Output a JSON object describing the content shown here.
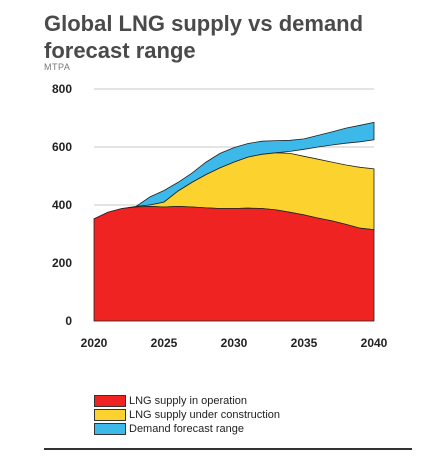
{
  "title": "Global LNG supply vs demand forecast range",
  "unit_label": "MTPA",
  "colors": {
    "operation": "#f02323",
    "construction": "#fcd22f",
    "demand": "#3cb9e8",
    "grid": "#c8c8c8"
  },
  "chart_data": {
    "type": "area",
    "title": "Global LNG supply vs demand forecast range",
    "ylabel": "MTPA",
    "xlim": [
      2020,
      2040
    ],
    "ylim": [
      0,
      800
    ],
    "xticks": [
      "2020",
      "2025",
      "2030",
      "2035",
      "2040"
    ],
    "yticks": [
      "0",
      "200",
      "400",
      "600",
      "800"
    ],
    "grid": true,
    "legend_position": "bottom",
    "series": [
      {
        "name": "LNG supply in operation",
        "points": [
          [
            2020,
            352
          ],
          [
            2021,
            375
          ],
          [
            2022,
            388
          ],
          [
            2023,
            393
          ],
          [
            2024,
            395
          ],
          [
            2025,
            393
          ],
          [
            2026,
            395
          ],
          [
            2027,
            393
          ],
          [
            2028,
            390
          ],
          [
            2029,
            388
          ],
          [
            2030,
            388
          ],
          [
            2031,
            389
          ],
          [
            2032,
            388
          ],
          [
            2033,
            383
          ],
          [
            2034,
            375
          ],
          [
            2035,
            366
          ],
          [
            2036,
            355
          ],
          [
            2037,
            345
          ],
          [
            2038,
            333
          ],
          [
            2039,
            320
          ],
          [
            2040,
            315
          ]
        ]
      },
      {
        "name": "LNG supply under construction",
        "points": [
          [
            2020,
            352
          ],
          [
            2021,
            375
          ],
          [
            2022,
            388
          ],
          [
            2023,
            395
          ],
          [
            2024,
            400
          ],
          [
            2025,
            410
          ],
          [
            2026,
            448
          ],
          [
            2027,
            478
          ],
          [
            2028,
            505
          ],
          [
            2029,
            528
          ],
          [
            2030,
            548
          ],
          [
            2031,
            565
          ],
          [
            2032,
            575
          ],
          [
            2033,
            580
          ],
          [
            2034,
            578
          ],
          [
            2035,
            568
          ],
          [
            2036,
            558
          ],
          [
            2037,
            548
          ],
          [
            2038,
            538
          ],
          [
            2039,
            530
          ],
          [
            2040,
            525
          ]
        ]
      },
      {
        "name": "Demand forecast range",
        "lower": [
          [
            2023,
            395
          ],
          [
            2024,
            400
          ],
          [
            2025,
            410
          ],
          [
            2026,
            448
          ],
          [
            2027,
            478
          ],
          [
            2028,
            505
          ],
          [
            2029,
            528
          ],
          [
            2030,
            548
          ],
          [
            2031,
            565
          ],
          [
            2032,
            575
          ],
          [
            2033,
            580
          ],
          [
            2034,
            585
          ],
          [
            2035,
            592
          ],
          [
            2036,
            600
          ],
          [
            2037,
            607
          ],
          [
            2038,
            613
          ],
          [
            2039,
            618
          ],
          [
            2040,
            625
          ]
        ],
        "upper": [
          [
            2023,
            395
          ],
          [
            2024,
            428
          ],
          [
            2025,
            450
          ],
          [
            2026,
            478
          ],
          [
            2027,
            510
          ],
          [
            2028,
            548
          ],
          [
            2029,
            578
          ],
          [
            2030,
            598
          ],
          [
            2031,
            612
          ],
          [
            2032,
            620
          ],
          [
            2033,
            622
          ],
          [
            2034,
            623
          ],
          [
            2035,
            628
          ],
          [
            2036,
            640
          ],
          [
            2037,
            652
          ],
          [
            2038,
            665
          ],
          [
            2039,
            675
          ],
          [
            2040,
            685
          ]
        ]
      }
    ]
  }
}
